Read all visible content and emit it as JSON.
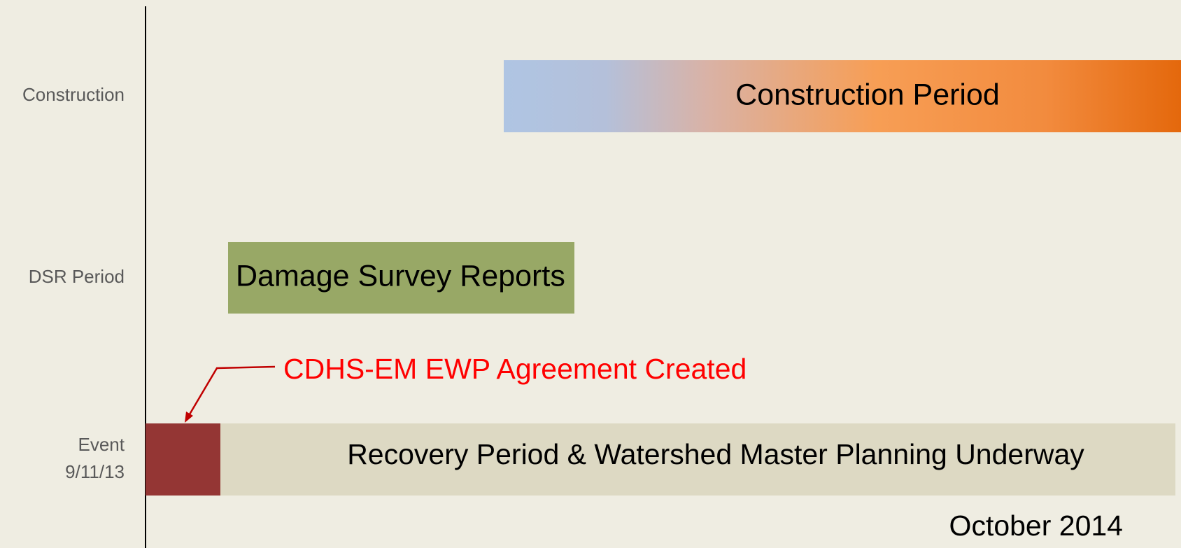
{
  "rows": [
    {
      "label": "Construction"
    },
    {
      "label": "DSR Period"
    },
    {
      "label": [
        "Event",
        "9/11/13"
      ]
    }
  ],
  "bars": {
    "construction": "Construction Period",
    "dsr": "Damage Survey Reports",
    "recovery": "Recovery  Period &  Watershed Master Planning  Underway"
  },
  "annotation": "CDHS-EM EWP Agreement Created",
  "end_label": "October 2014"
}
